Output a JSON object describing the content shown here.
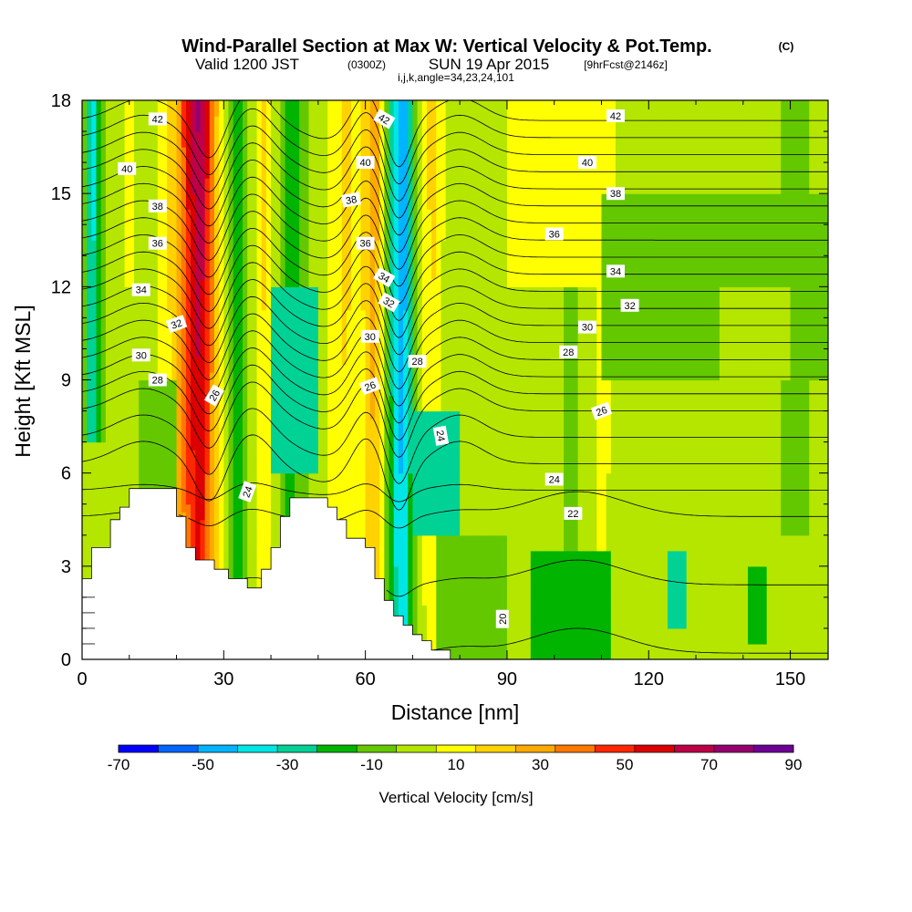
{
  "title": {
    "main": "Wind-Parallel Section at Max W: Vertical Velocity & Pot.Temp.",
    "copyright": "(C)",
    "valid_prefix": "Valid 1200 JST",
    "valid_utc": "(0300Z)",
    "valid_date": "SUN 19 Apr 2015",
    "forecast": "[9hrFcst@2146z]",
    "grid": "i,j,k,angle=34,23,24,101"
  },
  "chart_data": {
    "type": "heatmap",
    "xlabel": "Distance [nm]",
    "ylabel": "Height [Kft MSL]",
    "xlim": [
      0,
      158
    ],
    "ylim": [
      0,
      18
    ],
    "x_ticks": [
      "0",
      "30",
      "60",
      "90",
      "120",
      "150"
    ],
    "y_ticks": [
      "0",
      "3",
      "6",
      "9",
      "12",
      "15",
      "18"
    ],
    "x_tick_values": [
      0,
      30,
      60,
      90,
      120,
      150
    ],
    "y_tick_values": [
      0,
      3,
      6,
      9,
      12,
      15,
      18
    ],
    "colorbar": {
      "label": "Vertical Velocity [cm/s]",
      "levels": [
        -70,
        -60,
        -50,
        -40,
        -30,
        -20,
        -10,
        0,
        10,
        20,
        30,
        40,
        50,
        60,
        70,
        80,
        90
      ],
      "tick_labels": [
        "-70",
        "-50",
        "-30",
        "-10",
        "10",
        "30",
        "50",
        "70",
        "90"
      ],
      "colors": [
        "#0000ff",
        "#0064ff",
        "#00b4ff",
        "#00e6e6",
        "#00d296",
        "#00b400",
        "#64c800",
        "#b4e600",
        "#ffff00",
        "#ffd200",
        "#ffaa00",
        "#ff7800",
        "#ff2800",
        "#dc0000",
        "#be0046",
        "#96006e",
        "#6e0096"
      ]
    },
    "w_bands": [
      {
        "x": 0,
        "w": 12
      },
      {
        "x": 2,
        "w": -40
      },
      {
        "x": 4,
        "w": -10
      },
      {
        "x": 6,
        "w": 5
      },
      {
        "x": 10,
        "w": 12
      },
      {
        "x": 14,
        "w": 5
      },
      {
        "x": 17,
        "w": 15
      },
      {
        "x": 19,
        "w": 25
      },
      {
        "x": 21,
        "w": 45
      },
      {
        "x": 23,
        "w": 70
      },
      {
        "x": 25,
        "w": 85
      },
      {
        "x": 27,
        "w": 55
      },
      {
        "x": 29,
        "w": 22
      },
      {
        "x": 31,
        "w": -5
      },
      {
        "x": 33,
        "w": -25
      },
      {
        "x": 35,
        "w": -5
      },
      {
        "x": 37,
        "w": 15
      },
      {
        "x": 39,
        "w": 25
      },
      {
        "x": 41,
        "w": 5
      },
      {
        "x": 44,
        "w": -20
      },
      {
        "x": 47,
        "w": -5
      },
      {
        "x": 50,
        "w": 5
      },
      {
        "x": 53,
        "w": 15
      },
      {
        "x": 56,
        "w": 25
      },
      {
        "x": 58,
        "w": 15
      },
      {
        "x": 60,
        "w": 25
      },
      {
        "x": 62,
        "w": 40
      },
      {
        "x": 64,
        "w": 10
      },
      {
        "x": 66,
        "w": -35
      },
      {
        "x": 68,
        "w": -55
      },
      {
        "x": 70,
        "w": -15
      },
      {
        "x": 72,
        "w": 10
      },
      {
        "x": 74,
        "w": 25
      },
      {
        "x": 77,
        "w": 8
      },
      {
        "x": 82,
        "w": 2
      },
      {
        "x": 90,
        "w": 5
      },
      {
        "x": 100,
        "w": 8
      },
      {
        "x": 104,
        "w": -5
      },
      {
        "x": 110,
        "w": 15
      },
      {
        "x": 116,
        "w": 5
      },
      {
        "x": 120,
        "w": 8
      },
      {
        "x": 128,
        "w": 5
      },
      {
        "x": 135,
        "w": 0
      },
      {
        "x": 145,
        "w": 5
      },
      {
        "x": 150,
        "w": -5
      },
      {
        "x": 158,
        "w": 5
      }
    ],
    "w_patches": [
      {
        "x0": 0,
        "x1": 12,
        "y0": 0,
        "y1": 7,
        "w": 2
      },
      {
        "x0": 12,
        "x1": 20,
        "y0": 5.5,
        "y1": 9,
        "w": -5
      },
      {
        "x0": 40,
        "x1": 50,
        "y0": 6,
        "y1": 12,
        "w": -25
      },
      {
        "x0": 70,
        "x1": 80,
        "y0": 4,
        "y1": 8,
        "w": -25
      },
      {
        "x0": 75,
        "x1": 90,
        "y0": 0,
        "y1": 4,
        "w": -5
      },
      {
        "x0": 95,
        "x1": 112,
        "y0": 0,
        "y1": 3.5,
        "w": -12
      },
      {
        "x0": 112,
        "x1": 158,
        "y0": 0,
        "y1": 4,
        "w": 2
      },
      {
        "x0": 124,
        "x1": 128,
        "y0": 1,
        "y1": 3.5,
        "w": -25
      },
      {
        "x0": 141,
        "x1": 145,
        "y0": 0.5,
        "y1": 3,
        "w": -15
      },
      {
        "x0": 110,
        "x1": 158,
        "y0": 9,
        "y1": 15,
        "w": -5
      },
      {
        "x0": 90,
        "x1": 110,
        "y0": 12,
        "y1": 18,
        "w": 10
      },
      {
        "x0": 135,
        "x1": 150,
        "y0": 9,
        "y1": 12,
        "w": 3
      }
    ],
    "terrain": [
      [
        0,
        2.6
      ],
      [
        2,
        2.6
      ],
      [
        2,
        3.6
      ],
      [
        6,
        3.6
      ],
      [
        6,
        4.5
      ],
      [
        8,
        4.5
      ],
      [
        8,
        4.9
      ],
      [
        10,
        4.9
      ],
      [
        10,
        5.5
      ],
      [
        20,
        5.5
      ],
      [
        20,
        4.6
      ],
      [
        22,
        4.6
      ],
      [
        22,
        3.6
      ],
      [
        24,
        3.6
      ],
      [
        24,
        3.2
      ],
      [
        28,
        3.2
      ],
      [
        28,
        2.9
      ],
      [
        31,
        2.9
      ],
      [
        31,
        2.6
      ],
      [
        35,
        2.6
      ],
      [
        35,
        2.3
      ],
      [
        38,
        2.3
      ],
      [
        38,
        2.9
      ],
      [
        40,
        2.9
      ],
      [
        40,
        3.6
      ],
      [
        42,
        3.6
      ],
      [
        42,
        4.6
      ],
      [
        44,
        4.6
      ],
      [
        44,
        5.2
      ],
      [
        52,
        5.2
      ],
      [
        52,
        4.9
      ],
      [
        54,
        4.9
      ],
      [
        54,
        4.5
      ],
      [
        56,
        4.5
      ],
      [
        56,
        3.9
      ],
      [
        60,
        3.9
      ],
      [
        60,
        3.6
      ],
      [
        62,
        3.6
      ],
      [
        62,
        2.6
      ],
      [
        64,
        2.6
      ],
      [
        64,
        1.9
      ],
      [
        66,
        1.9
      ],
      [
        66,
        1.4
      ],
      [
        68,
        1.4
      ],
      [
        68,
        1.1
      ],
      [
        70,
        1.1
      ],
      [
        70,
        0.8
      ],
      [
        72,
        0.8
      ],
      [
        72,
        0.6
      ],
      [
        74,
        0.6
      ],
      [
        74,
        0.3
      ],
      [
        78,
        0.3
      ],
      [
        78,
        0.0
      ]
    ],
    "theta_levels": [
      20,
      21,
      22,
      23,
      24,
      25,
      26,
      27,
      28,
      29,
      30,
      31,
      32,
      33,
      34,
      35,
      36,
      37,
      38,
      39,
      40,
      41,
      42,
      43
    ],
    "contour_labels": [
      {
        "text": "42",
        "x": 16,
        "y": 17.4,
        "rot": 0
      },
      {
        "text": "40",
        "x": 9.5,
        "y": 15.8,
        "rot": 0
      },
      {
        "text": "38",
        "x": 16,
        "y": 14.6,
        "rot": 0
      },
      {
        "text": "36",
        "x": 16,
        "y": 13.4,
        "rot": 0
      },
      {
        "text": "34",
        "x": 12.5,
        "y": 11.9,
        "rot": 0
      },
      {
        "text": "32",
        "x": 20,
        "y": 10.8,
        "rot": -20
      },
      {
        "text": "30",
        "x": 12.5,
        "y": 9.8,
        "rot": 0
      },
      {
        "text": "28",
        "x": 16,
        "y": 9.0,
        "rot": 0
      },
      {
        "text": "26",
        "x": 28,
        "y": 8.5,
        "rot": -60
      },
      {
        "text": "24",
        "x": 35,
        "y": 5.4,
        "rot": -70
      },
      {
        "text": "42",
        "x": 64,
        "y": 17.4,
        "rot": 30
      },
      {
        "text": "40",
        "x": 60,
        "y": 16.0,
        "rot": 0
      },
      {
        "text": "38",
        "x": 57,
        "y": 14.8,
        "rot": -10
      },
      {
        "text": "36",
        "x": 60,
        "y": 13.4,
        "rot": 0
      },
      {
        "text": "34",
        "x": 64,
        "y": 12.3,
        "rot": 30
      },
      {
        "text": "32",
        "x": 65,
        "y": 11.5,
        "rot": 30
      },
      {
        "text": "30",
        "x": 61,
        "y": 10.4,
        "rot": 0
      },
      {
        "text": "28",
        "x": 71,
        "y": 9.6,
        "rot": 0
      },
      {
        "text": "26",
        "x": 61,
        "y": 8.8,
        "rot": -20
      },
      {
        "text": "24",
        "x": 76,
        "y": 7.2,
        "rot": 80
      },
      {
        "text": "42",
        "x": 113,
        "y": 17.5,
        "rot": 0
      },
      {
        "text": "40",
        "x": 107,
        "y": 16.0,
        "rot": 0
      },
      {
        "text": "38",
        "x": 113,
        "y": 15.0,
        "rot": 0
      },
      {
        "text": "36",
        "x": 100,
        "y": 13.7,
        "rot": 0
      },
      {
        "text": "34",
        "x": 113,
        "y": 12.5,
        "rot": 0
      },
      {
        "text": "32",
        "x": 116,
        "y": 11.4,
        "rot": 0
      },
      {
        "text": "30",
        "x": 107,
        "y": 10.7,
        "rot": 0
      },
      {
        "text": "28",
        "x": 103,
        "y": 9.9,
        "rot": 0
      },
      {
        "text": "26",
        "x": 110,
        "y": 8.0,
        "rot": -20
      },
      {
        "text": "24",
        "x": 100,
        "y": 5.8,
        "rot": 0
      },
      {
        "text": "22",
        "x": 104,
        "y": 4.7,
        "rot": 0
      },
      {
        "text": "20",
        "x": 89,
        "y": 1.3,
        "rot": -90
      }
    ]
  }
}
